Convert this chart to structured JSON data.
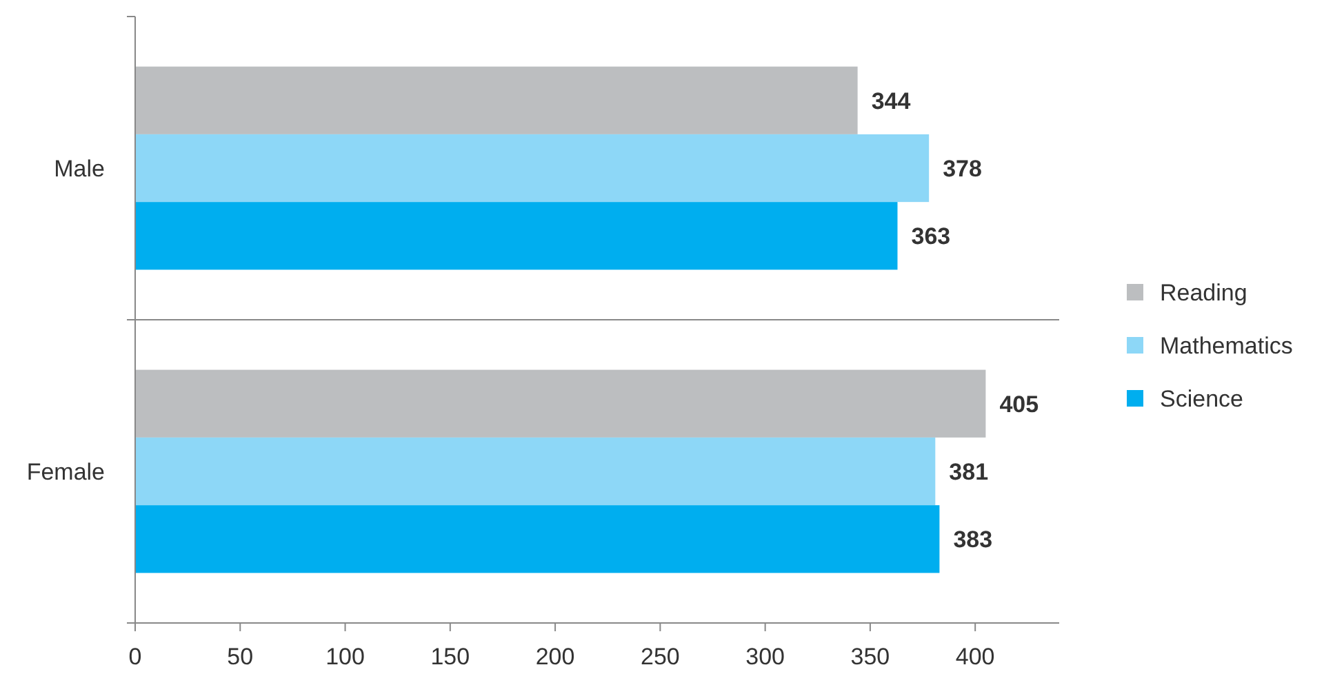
{
  "chart_data": {
    "type": "bar",
    "orientation": "horizontal",
    "categories": [
      "Male",
      "Female"
    ],
    "series": [
      {
        "name": "Reading",
        "color": "#bcbec0",
        "values": [
          344,
          405
        ]
      },
      {
        "name": "Mathematics",
        "color": "#8dd7f7",
        "values": [
          378,
          381
        ]
      },
      {
        "name": "Science",
        "color": "#00aeef",
        "values": [
          363,
          383
        ]
      }
    ],
    "xlim": [
      0,
      440
    ],
    "xticks": [
      0,
      50,
      100,
      150,
      200,
      250,
      300,
      350,
      400
    ],
    "grid": false,
    "legend": "right",
    "data_labels": true
  }
}
